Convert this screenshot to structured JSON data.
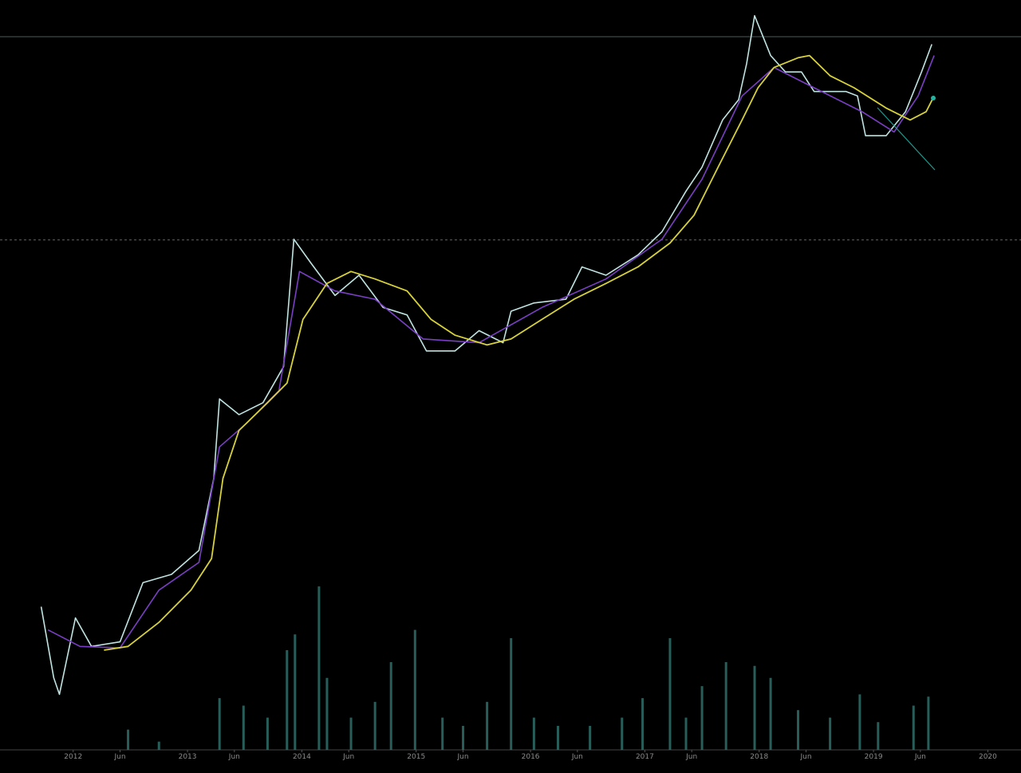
{
  "chart_data": {
    "type": "line",
    "xlim": [
      2011.36,
      2020.29
    ],
    "ylim": [
      0,
      100
    ],
    "xticks": [
      2012,
      {
        "value": 2012.41,
        "label": "Jun"
      },
      2013,
      {
        "value": 2013.41,
        "label": "Jun"
      },
      2014,
      {
        "value": 2014.41,
        "label": "Jun"
      },
      2015,
      {
        "value": 2015.41,
        "label": "Jun"
      },
      2016,
      {
        "value": 2016.41,
        "label": "Jun"
      },
      2017,
      {
        "value": 2017.41,
        "label": "Jun"
      },
      2018,
      {
        "value": 2018.41,
        "label": "Jun"
      },
      2019,
      {
        "value": 2019.41,
        "label": "Jun"
      },
      2020
    ],
    "hlines": [
      {
        "value": 95.1,
        "style": "solid"
      },
      {
        "value": 68.0,
        "style": "dashed"
      }
    ],
    "series": [
      {
        "color": "#bfe3e0",
        "width": 1.6,
        "x": [
          2011.72,
          2011.83,
          2011.88,
          2012.02,
          2012.16,
          2012.41,
          2012.61,
          2012.86,
          2013.1,
          2013.23,
          2013.28,
          2013.45,
          2013.66,
          2013.84,
          2013.93,
          2014.08,
          2014.29,
          2014.5,
          2014.71,
          2014.92,
          2015.09,
          2015.34,
          2015.55,
          2015.76,
          2015.83,
          2016.03,
          2016.31,
          2016.45,
          2016.66,
          2016.94,
          2017.15,
          2017.36,
          2017.5,
          2017.68,
          2017.82,
          2017.89,
          2017.96,
          2018.1,
          2018.23,
          2018.37,
          2018.48,
          2018.76,
          2018.86,
          2018.93,
          2019.11,
          2019.28,
          2019.42,
          2019.51
        ],
        "values": [
          19.1,
          9.6,
          7.4,
          17.6,
          13.8,
          14.4,
          22.3,
          23.4,
          26.6,
          36.2,
          46.8,
          44.7,
          46.3,
          51.1,
          68.1,
          64.9,
          60.6,
          63.3,
          59.0,
          58.0,
          53.2,
          53.2,
          55.9,
          54.3,
          58.5,
          59.6,
          60.1,
          64.4,
          63.3,
          66.0,
          69.1,
          74.5,
          77.7,
          84.0,
          86.7,
          91.5,
          97.9,
          92.6,
          90.4,
          90.4,
          87.8,
          87.8,
          87.2,
          81.9,
          81.9,
          85.1,
          90.4,
          94.1
        ]
      },
      {
        "color": "#7a3fc4",
        "width": 1.6,
        "x": [
          2011.78,
          2012.06,
          2012.41,
          2012.75,
          2013.1,
          2013.28,
          2013.52,
          2013.8,
          2013.98,
          2014.29,
          2014.64,
          2015.06,
          2015.55,
          2016.1,
          2016.66,
          2017.15,
          2017.5,
          2017.85,
          2018.13,
          2018.48,
          2018.9,
          2019.18,
          2019.39,
          2019.53
        ],
        "values": [
          16.0,
          13.8,
          13.6,
          21.3,
          25.0,
          40.4,
          43.6,
          47.9,
          63.8,
          61.2,
          60.1,
          54.8,
          54.3,
          59.0,
          62.8,
          68.1,
          76.1,
          87.2,
          91.0,
          88.3,
          85.1,
          82.4,
          87.2,
          92.6
        ]
      },
      {
        "color": "#d8d23a",
        "width": 1.8,
        "x": [
          2012.27,
          2012.48,
          2012.75,
          2013.03,
          2013.21,
          2013.31,
          2013.45,
          2013.7,
          2013.87,
          2014.01,
          2014.22,
          2014.43,
          2014.64,
          2014.92,
          2015.13,
          2015.34,
          2015.62,
          2015.83,
          2016.1,
          2016.38,
          2016.66,
          2016.94,
          2017.22,
          2017.43,
          2017.64,
          2017.85,
          2017.99,
          2018.13,
          2018.34,
          2018.44,
          2018.62,
          2018.83,
          2019.11,
          2019.32,
          2019.46,
          2019.53
        ],
        "values": [
          13.3,
          13.8,
          17.0,
          21.3,
          25.5,
          36.2,
          42.6,
          46.3,
          48.9,
          57.4,
          62.2,
          63.8,
          62.8,
          61.2,
          57.4,
          55.3,
          54.0,
          54.8,
          57.4,
          60.1,
          62.2,
          64.4,
          67.6,
          71.3,
          77.7,
          84.0,
          88.3,
          91.0,
          92.3,
          92.6,
          89.9,
          88.3,
          85.6,
          84.0,
          85.1,
          87.2
        ]
      }
    ],
    "volume": {
      "color": "#2f6f68",
      "x": [
        2012.48,
        2012.75,
        2013.28,
        2013.49,
        2013.7,
        2013.87,
        2013.94,
        2014.15,
        2014.22,
        2014.43,
        2014.64,
        2014.78,
        2014.99,
        2015.23,
        2015.41,
        2015.62,
        2015.83,
        2016.03,
        2016.24,
        2016.52,
        2016.8,
        2016.98,
        2017.22,
        2017.36,
        2017.5,
        2017.71,
        2017.96,
        2018.1,
        2018.34,
        2018.62,
        2018.88,
        2019.04,
        2019.35,
        2019.48
      ],
      "values": [
        2.7,
        1.1,
        6.9,
        5.9,
        4.3,
        13.3,
        15.4,
        21.8,
        9.6,
        4.3,
        6.4,
        11.7,
        16.0,
        4.3,
        3.2,
        6.4,
        14.9,
        4.3,
        3.2,
        3.2,
        4.3,
        6.9,
        14.9,
        4.3,
        8.5,
        11.7,
        11.2,
        9.6,
        5.3,
        4.3,
        7.4,
        3.7,
        5.9,
        7.1
      ]
    }
  }
}
